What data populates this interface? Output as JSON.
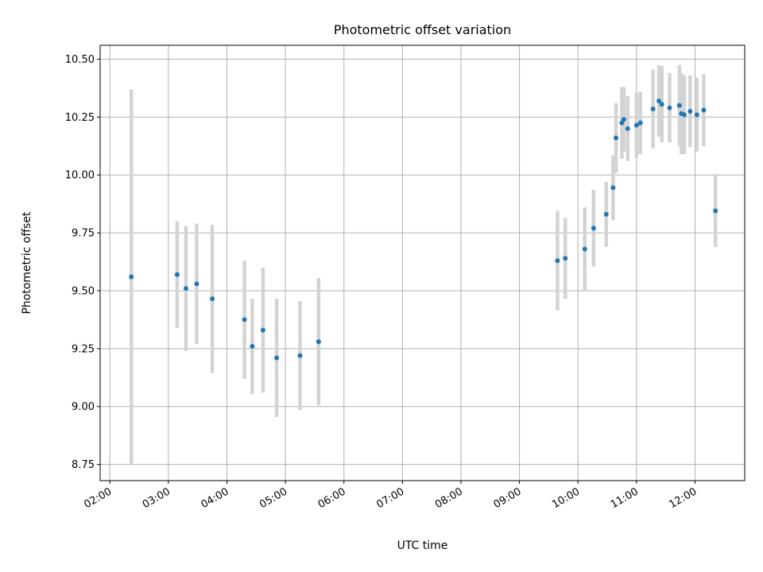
{
  "chart_data": {
    "type": "scatter",
    "title": "Photometric offset variation",
    "xlabel": "UTC time",
    "ylabel": "Photometric offset",
    "x_unit": "UTC hours",
    "xlim": [
      "01:50",
      "12:51"
    ],
    "ylim": [
      8.68,
      10.56
    ],
    "xticks": [
      "02:00",
      "03:00",
      "04:00",
      "05:00",
      "06:00",
      "07:00",
      "08:00",
      "09:00",
      "10:00",
      "11:00",
      "12:00"
    ],
    "yticks": [
      "8.75",
      "9.00",
      "9.25",
      "9.50",
      "9.75",
      "10.00",
      "10.25",
      "10.50"
    ],
    "grid": true,
    "colors": {
      "point": "#1f77b4",
      "errorbar": "#d3d3d3",
      "grid": "#b0b0b0"
    },
    "points": [
      {
        "x": "02:22",
        "y": 9.56,
        "err": 0.81
      },
      {
        "x": "03:09",
        "y": 9.57,
        "err": 0.23
      },
      {
        "x": "03:18",
        "y": 9.51,
        "err": 0.27
      },
      {
        "x": "03:29",
        "y": 9.53,
        "err": 0.26
      },
      {
        "x": "03:45",
        "y": 9.465,
        "err": 0.32
      },
      {
        "x": "04:18",
        "y": 9.375,
        "err": 0.255
      },
      {
        "x": "04:26",
        "y": 9.26,
        "err": 0.205
      },
      {
        "x": "04:37",
        "y": 9.33,
        "err": 0.27
      },
      {
        "x": "04:51",
        "y": 9.21,
        "err": 0.255
      },
      {
        "x": "05:15",
        "y": 9.22,
        "err": 0.235
      },
      {
        "x": "05:34",
        "y": 9.28,
        "err": 0.275
      },
      {
        "x": "09:39",
        "y": 9.63,
        "err": 0.215
      },
      {
        "x": "09:47",
        "y": 9.64,
        "err": 0.175
      },
      {
        "x": "10:07",
        "y": 9.68,
        "err": 0.18
      },
      {
        "x": "10:16",
        "y": 9.77,
        "err": 0.165
      },
      {
        "x": "10:29",
        "y": 9.83,
        "err": 0.14
      },
      {
        "x": "10:36",
        "y": 9.945,
        "err": 0.14
      },
      {
        "x": "10:39",
        "y": 10.16,
        "err": 0.15
      },
      {
        "x": "10:45",
        "y": 10.225,
        "err": 0.155
      },
      {
        "x": "10:47",
        "y": 10.24,
        "err": 0.14
      },
      {
        "x": "10:51",
        "y": 10.2,
        "err": 0.14
      },
      {
        "x": "11:00",
        "y": 10.215,
        "err": 0.14
      },
      {
        "x": "11:04",
        "y": 10.225,
        "err": 0.135
      },
      {
        "x": "11:17",
        "y": 10.285,
        "err": 0.17
      },
      {
        "x": "11:23",
        "y": 10.32,
        "err": 0.155
      },
      {
        "x": "11:26",
        "y": 10.305,
        "err": 0.165
      },
      {
        "x": "11:34",
        "y": 10.29,
        "err": 0.15
      },
      {
        "x": "11:44",
        "y": 10.3,
        "err": 0.175
      },
      {
        "x": "11:46",
        "y": 10.265,
        "err": 0.175
      },
      {
        "x": "11:49",
        "y": 10.26,
        "err": 0.17
      },
      {
        "x": "11:55",
        "y": 10.275,
        "err": 0.155
      },
      {
        "x": "12:02",
        "y": 10.26,
        "err": 0.16
      },
      {
        "x": "12:09",
        "y": 10.28,
        "err": 0.155
      },
      {
        "x": "12:21",
        "y": 9.845,
        "err": 0.155
      }
    ]
  }
}
